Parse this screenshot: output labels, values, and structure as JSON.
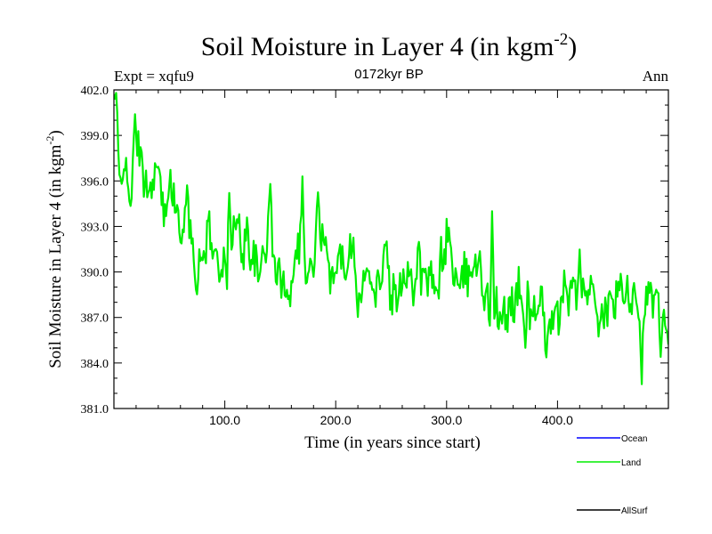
{
  "chart_data": {
    "type": "line",
    "title": "Soil Moisture in Layer 4 (in kgm",
    "title_sup": "-2",
    "title_close": ")",
    "subtitle": "0172kyr BP",
    "left_label": "Expt = xqfu9",
    "right_label": "Ann",
    "xlabel": "Time (in years since start)",
    "ylabel": "Soil Moisture in Layer 4 (in kgm",
    "ylabel_sup": "-2",
    "ylabel_close": ")",
    "xlim": [
      0,
      500
    ],
    "ylim": [
      381.0,
      402.0
    ],
    "x_ticks": [
      100,
      200,
      300,
      400
    ],
    "x_tick_labels": [
      "100.0",
      "200.0",
      "300.0",
      "400.0"
    ],
    "y_ticks": [
      381,
      384,
      387,
      390,
      393,
      396,
      399,
      402
    ],
    "y_tick_labels": [
      "381.0",
      "384.0",
      "387.0",
      "390.0",
      "393.0",
      "396.0",
      "399.0",
      "402.0"
    ],
    "legend": [
      {
        "name": "Ocean",
        "color": "#0000ff"
      },
      {
        "name": "Land",
        "color": "#00ee00"
      },
      {
        "name": "AllSurf",
        "color": "#000000"
      }
    ],
    "legend_position": "bottom-right",
    "series": [
      {
        "name": "Land",
        "color": "#00ee00",
        "x_start": 0,
        "x_step": 5,
        "values": [
          401.5,
          396.5,
          397.0,
          394.5,
          398.5,
          397.0,
          395.5,
          396.0,
          397.0,
          393.0,
          396.5,
          395.0,
          391.5,
          395.0,
          392.5,
          389.5,
          391.0,
          393.0,
          391.0,
          391.0,
          389.5,
          391.5,
          393.5,
          391.5,
          392.5,
          391.0,
          389.5,
          391.5,
          393.0,
          390.5,
          389.5,
          389.0,
          389.0,
          392.5,
          391.5,
          389.5,
          390.5,
          394.5,
          391.0,
          390.0,
          390.0,
          391.0,
          390.5,
          393.0,
          388.0,
          389.0,
          390.5,
          389.0,
          389.5,
          391.0,
          388.5,
          388.0,
          389.5,
          390.5,
          389.0,
          391.0,
          389.0,
          390.0,
          388.0,
          390.5,
          392.5,
          391.0,
          388.5,
          389.5,
          390.0,
          390.5,
          391.0,
          388.0,
          387.0,
          387.5,
          386.5,
          387.5,
          388.0,
          388.5,
          388.0,
          388.0,
          387.0,
          387.5,
          386.0,
          387.0,
          386.5,
          388.5,
          389.0,
          388.5,
          390.0,
          388.0,
          389.0,
          387.5,
          386.5,
          387.5,
          388.0,
          389.0,
          388.0,
          388.5,
          389.0,
          387.5,
          388.5,
          388.0,
          388.0,
          386.5
        ],
        "peaks": [
          [
            2,
            401.8
          ],
          [
            19,
            400.4
          ],
          [
            48,
            394.5
          ],
          [
            104,
            395.2
          ],
          [
            141,
            395.8
          ],
          [
            170,
            396.3
          ],
          [
            244,
            391.8
          ],
          [
            341,
            394.0
          ],
          [
            371,
            385.0
          ],
          [
            476,
            382.6
          ],
          [
            493,
            384.4
          ]
        ]
      }
    ]
  }
}
